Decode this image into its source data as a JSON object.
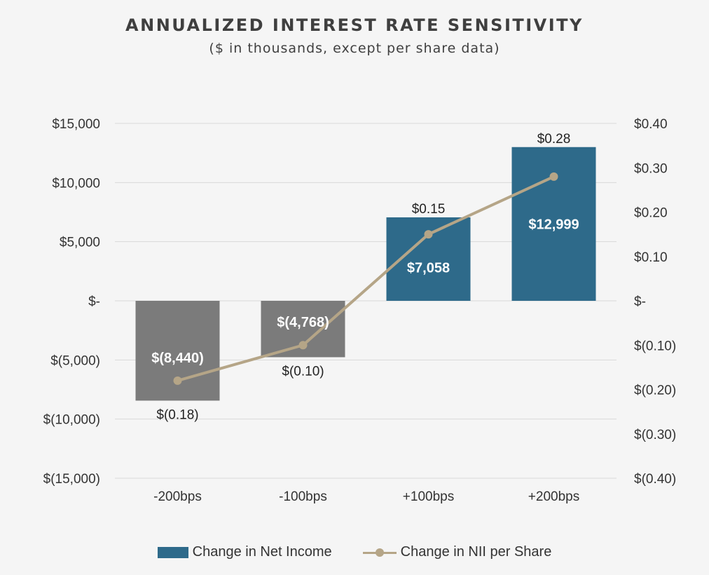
{
  "title": "ANNUALIZED INTEREST RATE SENSITIVITY",
  "subtitle": "($ in thousands, except per share data)",
  "colors": {
    "positive_bar": "#2e6a8a",
    "negative_bar": "#7b7b7b",
    "line": "#b5a587",
    "grid": "#d9d9d9"
  },
  "chart_data": {
    "type": "bar",
    "categories": [
      "-200bps",
      "-100bps",
      "+100bps",
      "+200bps"
    ],
    "series": [
      {
        "name": "Change in Net Income",
        "type": "bar",
        "axis": "left",
        "values": [
          -8440,
          -4768,
          7058,
          12999
        ],
        "labels": [
          "$(8,440)",
          "$(4,768)",
          "$7,058",
          "$12,999"
        ]
      },
      {
        "name": "Change in NII per Share",
        "type": "line",
        "axis": "right",
        "values": [
          -0.18,
          -0.1,
          0.15,
          0.28
        ],
        "labels": [
          "$(0.18)",
          "$(0.10)",
          "$0.15",
          "$0.28"
        ]
      }
    ],
    "y_left": {
      "ylim": [
        -15000,
        15000
      ],
      "ticks": [
        15000,
        10000,
        5000,
        0,
        -5000,
        -10000,
        -15000
      ],
      "tick_labels": [
        "$15,000",
        "$10,000",
        "$5,000",
        "$-",
        "$(5,000)",
        "$(10,000)",
        "$(15,000)"
      ]
    },
    "y_right": {
      "ylim": [
        -0.4,
        0.4
      ],
      "ticks": [
        0.4,
        0.3,
        0.2,
        0.1,
        0,
        -0.1,
        -0.2,
        -0.3,
        -0.4
      ],
      "tick_labels": [
        "$0.40",
        "$0.30",
        "$0.20",
        "$0.10",
        "$-",
        "$(0.10)",
        "$(0.20)",
        "$(0.30)",
        "$(0.40)"
      ]
    },
    "grid": true,
    "legend_position": "bottom"
  },
  "legend": {
    "bar_label": "Change in Net Income",
    "line_label": "Change in NII per Share"
  }
}
